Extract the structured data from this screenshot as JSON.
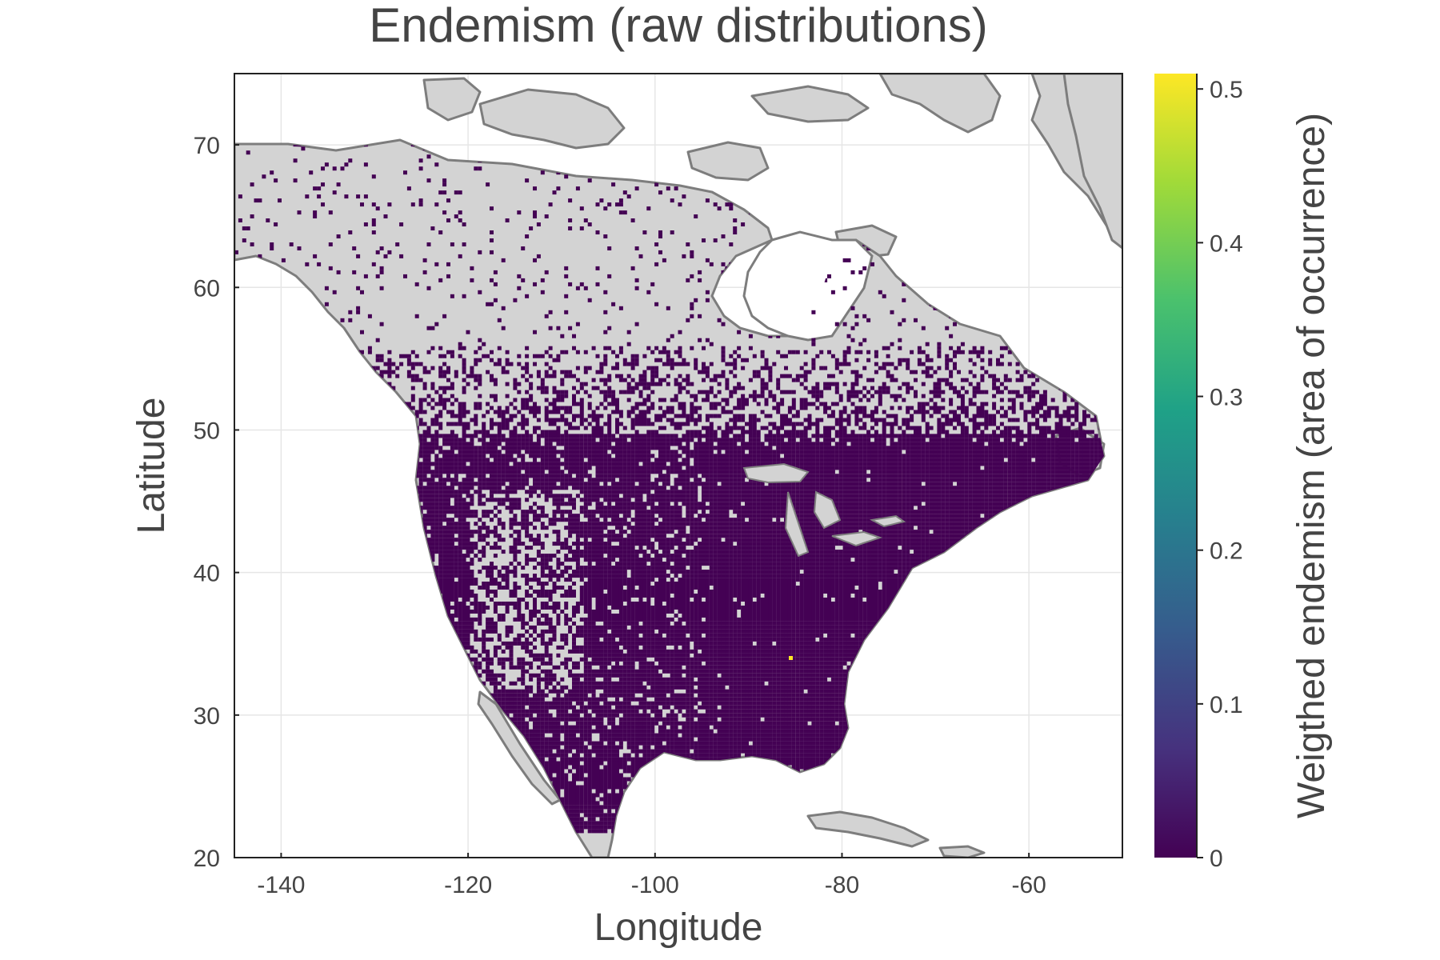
{
  "title": "Endemism (raw distributions)",
  "x_axis": {
    "label": "Longitude",
    "ticks": [
      -140,
      -120,
      -100,
      -80,
      -60
    ],
    "range": [
      -145,
      -50
    ]
  },
  "y_axis": {
    "label": "Latitude",
    "ticks": [
      20,
      30,
      40,
      50,
      60,
      70
    ],
    "range": [
      20,
      75
    ]
  },
  "colorbar": {
    "label": "Weigthed endemism (area of occurrence)",
    "ticks": [
      0,
      0.1,
      0.2,
      0.3,
      0.4,
      0.5
    ],
    "tick_labels": [
      "0",
      "0.1",
      "0.2",
      "0.3",
      "0.4",
      "0.5"
    ],
    "range": [
      0,
      0.51
    ],
    "colormap": "viridis",
    "colors": [
      "#440154",
      "#46327e",
      "#365c8d",
      "#277f8e",
      "#1fa187",
      "#4ac16d",
      "#a0da39",
      "#fde725"
    ]
  },
  "colors": {
    "land": "#d3d3d3",
    "coast": "#7d7d7d",
    "endemism_low": "#440154",
    "endemism_high": "#fde725",
    "water": "#ffffff"
  },
  "grid": true,
  "map_data": {
    "region": "North America",
    "endemism_range": [
      0,
      0.51
    ],
    "hotspots": [
      {
        "lon": -86,
        "lat": 35,
        "value": 0.5
      }
    ]
  }
}
